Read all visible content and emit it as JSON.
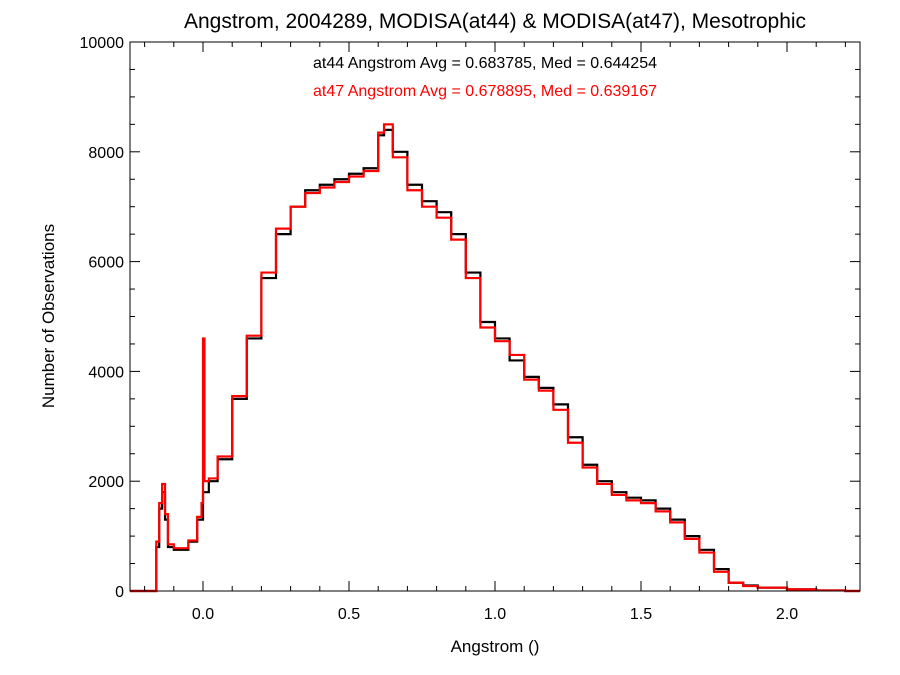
{
  "chart_data": {
    "type": "line",
    "title": "Angstrom, 2004289, MODISA(at44) & MODISA(at47), Mesotrophic",
    "xlabel": "Angstrom ()",
    "ylabel": "Number of Observations",
    "xlim": [
      -0.25,
      2.25
    ],
    "ylim": [
      0,
      10000
    ],
    "xticks": [
      0.0,
      0.5,
      1.0,
      1.5,
      2.0
    ],
    "xtick_labels": [
      "0.0",
      "0.5",
      "1.0",
      "1.5",
      "2.0"
    ],
    "yticks": [
      0,
      2000,
      4000,
      6000,
      8000,
      10000
    ],
    "ytick_labels": [
      "0",
      "2000",
      "4000",
      "6000",
      "8000",
      "10000"
    ],
    "grid": false,
    "annotations": [
      {
        "text": "at44 Angstrom Avg = 0.683785, Med = 0.644254",
        "color": "#000000"
      },
      {
        "text": "at47 Angstrom Avg = 0.678895, Med = 0.639167",
        "color": "#ff0000"
      }
    ],
    "step": "histogram",
    "series": [
      {
        "color": "#000000",
        "x": [
          -0.25,
          -0.17,
          -0.16,
          -0.15,
          -0.14,
          -0.13,
          -0.12,
          -0.1,
          -0.05,
          -0.02,
          0.0,
          0.02,
          0.05,
          0.1,
          0.15,
          0.2,
          0.25,
          0.3,
          0.35,
          0.4,
          0.45,
          0.5,
          0.55,
          0.6,
          0.62,
          0.65,
          0.7,
          0.75,
          0.8,
          0.85,
          0.9,
          0.95,
          1.0,
          1.05,
          1.1,
          1.15,
          1.2,
          1.25,
          1.3,
          1.35,
          1.4,
          1.45,
          1.5,
          1.55,
          1.6,
          1.65,
          1.7,
          1.75,
          1.8,
          1.85,
          1.9,
          2.0,
          2.1,
          2.2,
          2.25
        ],
        "values": [
          0,
          0,
          800,
          1500,
          1800,
          1300,
          800,
          750,
          900,
          1300,
          1800,
          2000,
          2400,
          3500,
          4600,
          5700,
          6500,
          7000,
          7300,
          7400,
          7500,
          7600,
          7700,
          8300,
          8400,
          8000,
          7400,
          7100,
          6900,
          6500,
          5800,
          4900,
          4600,
          4200,
          3900,
          3700,
          3400,
          2800,
          2300,
          2000,
          1800,
          1700,
          1650,
          1500,
          1300,
          1000,
          750,
          400,
          150,
          100,
          60,
          30,
          10,
          0,
          0
        ]
      },
      {
        "color": "#ff0000",
        "x": [
          -0.25,
          -0.17,
          -0.16,
          -0.15,
          -0.14,
          -0.13,
          -0.12,
          -0.1,
          -0.05,
          -0.02,
          -0.005,
          0.0,
          0.005,
          0.02,
          0.05,
          0.1,
          0.15,
          0.2,
          0.25,
          0.3,
          0.35,
          0.4,
          0.45,
          0.5,
          0.55,
          0.6,
          0.62,
          0.65,
          0.7,
          0.75,
          0.8,
          0.85,
          0.9,
          0.95,
          1.0,
          1.05,
          1.1,
          1.15,
          1.2,
          1.25,
          1.3,
          1.35,
          1.4,
          1.45,
          1.5,
          1.55,
          1.6,
          1.65,
          1.7,
          1.75,
          1.8,
          1.85,
          1.9,
          2.0,
          2.1,
          2.2,
          2.25
        ],
        "values": [
          0,
          0,
          900,
          1600,
          1950,
          1400,
          850,
          780,
          920,
          1350,
          1600,
          4600,
          2000,
          2050,
          2450,
          3550,
          4650,
          5800,
          6600,
          7000,
          7250,
          7350,
          7450,
          7550,
          7650,
          8350,
          8500,
          7900,
          7300,
          7000,
          6800,
          6400,
          5700,
          4800,
          4550,
          4300,
          3850,
          3650,
          3300,
          2700,
          2250,
          1950,
          1750,
          1650,
          1600,
          1450,
          1250,
          950,
          700,
          350,
          150,
          90,
          60,
          30,
          10,
          0,
          0
        ]
      }
    ]
  }
}
